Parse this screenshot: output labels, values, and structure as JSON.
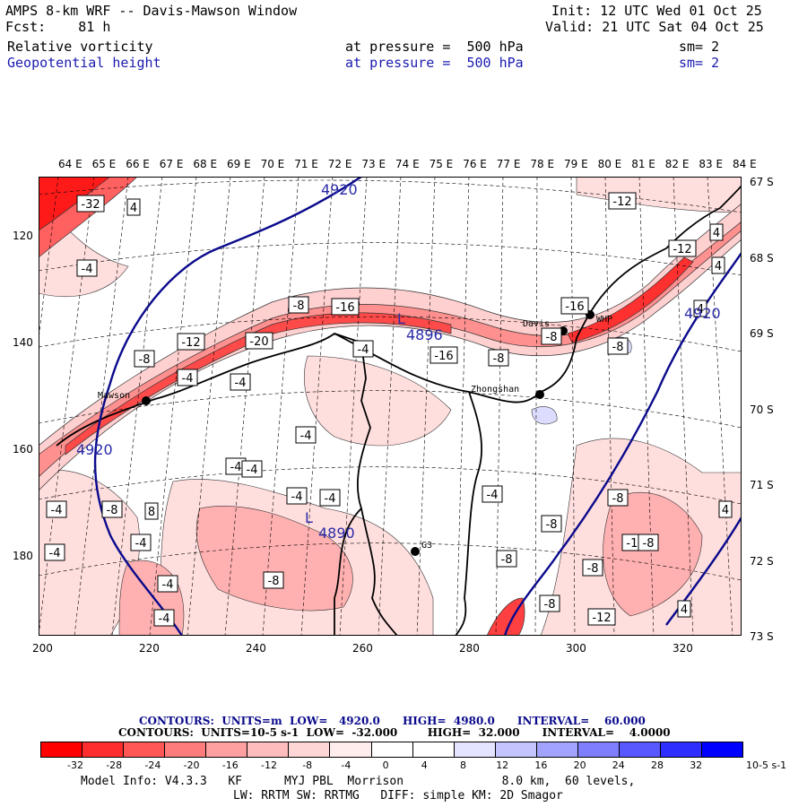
{
  "header": {
    "title": "AMPS 8-km WRF -- Davis-Mawson Window",
    "fcst": "Fcst:    81 h",
    "init": "Init: 12 UTC Wed 01 Oct 25",
    "valid": "Valid: 21 UTC Sat 04 Oct 25",
    "field1": {
      "name": "Relative vorticity",
      "level": "at pressure =  500 hPa",
      "smooth": "sm= 2"
    },
    "field2": {
      "name": "Geopotential height",
      "level": "at pressure =  500 hPa",
      "smooth": "sm= 2"
    }
  },
  "map": {
    "lon_labels": [
      "64 E",
      "65 E",
      "66 E",
      "67 E",
      "68 E",
      "69 E",
      "70 E",
      "71 E",
      "72 E",
      "73 E",
      "74 E",
      "75 E",
      "76 E",
      "77 E",
      "78 E",
      "79 E",
      "80 E",
      "81 E",
      "82 E",
      "83 E",
      "84 E"
    ],
    "lat_labels": [
      "67 S",
      "68 S",
      "69 S",
      "70 S",
      "71 S",
      "72 S",
      "73 S"
    ],
    "y_ticks": [
      "120",
      "140",
      "160",
      "180"
    ],
    "x_ticks": [
      "200",
      "220",
      "240",
      "260",
      "280",
      "300",
      "320"
    ],
    "stations": [
      "Mawson",
      "Davis",
      "Zhongshan",
      "WHP",
      "G3"
    ],
    "height_labels": [
      "4920",
      "4920",
      "4920",
      "4896",
      "4890"
    ],
    "lows": [
      "L",
      "L"
    ],
    "vort_labels": [
      "-32",
      "4",
      "-4",
      "-8",
      "-16",
      "-12",
      "-20",
      "-4",
      "-8",
      "-4",
      "-16",
      "-4",
      "-8",
      "-16",
      "-8",
      "-4",
      "-12",
      "-12",
      "4",
      "4",
      "4",
      "-8",
      "8",
      "-4",
      "-4",
      "-4",
      "-4",
      "-4",
      "-8",
      "-4",
      "-4",
      "4",
      "4",
      "-4",
      "-8",
      "-8",
      "-8",
      "-8",
      "-12",
      "-8",
      "-12",
      "-4",
      "-8",
      "-8",
      "4",
      "-4",
      "4"
    ],
    "colors": {
      "coast": "#000000",
      "height_contour": "#0a0a8c",
      "vort_fill_strong": "#ff2020",
      "vort_fill_light": "#ffdede"
    }
  },
  "contours_info": {
    "height": {
      "label": "CONTOURS:  UNITS=m  LOW=   4920.0      HIGH=  4980.0      INTERVAL=    60.000"
    },
    "vorticity": {
      "label": "CONTOURS:  UNITS=10-5 s-1  LOW=  -32.000        HIGH=  32.000      INTERVAL=    4.0000"
    }
  },
  "colorbar": {
    "colors": [
      "#ff0000",
      "#ff2e2e",
      "#ff5656",
      "#ff7c7c",
      "#ffa0a0",
      "#ffbcbc",
      "#ffd6d6",
      "#ffecec",
      "#ffffff",
      "#ffffff",
      "#e4e4ff",
      "#c4c4ff",
      "#a2a2ff",
      "#7e7eff",
      "#5858ff",
      "#2e2eff",
      "#0000ff"
    ],
    "ticks": [
      "-32",
      "-28",
      "-24",
      "-20",
      "-16",
      "-12",
      "-8",
      "-4",
      "0",
      "4",
      "8",
      "12",
      "16",
      "20",
      "24",
      "28",
      "32"
    ],
    "units": "10-5 s-1"
  },
  "footer": {
    "line1": "Model Info: V4.3.3   KF      MYJ PBL  Morrison              8.0 km,  60 levels,",
    "line2": "LW: RRTM SW: RRTMG   DIFF: simple KM: 2D Smagor"
  }
}
